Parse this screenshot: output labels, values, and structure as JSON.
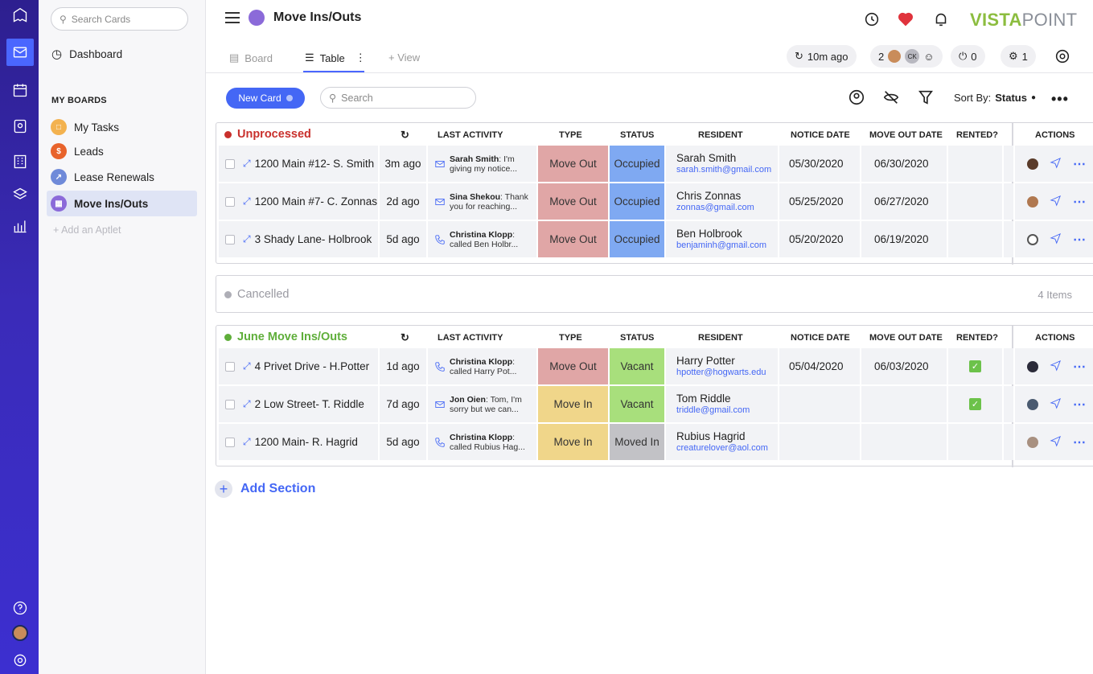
{
  "app": {
    "brand_bold": "VISTA",
    "brand_light": "POINT"
  },
  "sidebar": {
    "search_placeholder": "Search Cards",
    "dashboard": "Dashboard",
    "my_boards": "MY BOARDS",
    "items": [
      {
        "label": "My Tasks",
        "color": "#f3b24f"
      },
      {
        "label": "Leads",
        "color": "#e8632b"
      },
      {
        "label": "Lease Renewals",
        "color": "#6f8ad9"
      },
      {
        "label": "Move Ins/Outs",
        "color": "#8b6ad9"
      }
    ],
    "add_aptlet": "+ Add an Aptlet"
  },
  "header": {
    "title": "Move Ins/Outs",
    "tabs": {
      "board": "Board",
      "table": "Table",
      "view": "+ View"
    },
    "last_sync": "10m ago",
    "watchers_count": "2",
    "watcher_initials": "CK",
    "integrations_count": "0",
    "bots_count": "1"
  },
  "toolbar": {
    "new_card": "New Card",
    "search_placeholder": "Search",
    "sort_by": "Sort By:",
    "sort_value": "Status"
  },
  "columns": {
    "last_activity": "LAST ACTIVITY",
    "type": "TYPE",
    "status": "STATUS",
    "resident": "RESIDENT",
    "notice_date": "NOTICE DATE",
    "move_out_date": "MOVE OUT DATE",
    "rented": "RENTED?",
    "actions": "ACTIONS"
  },
  "colors": {
    "move_out": "#e0a6a6",
    "move_in": "#f0d68a",
    "occupied": "#7fa9f2",
    "vacant": "#a8df7c",
    "moved_in": "#c2c2c6",
    "unprocessed": "#c9302c",
    "june": "#5fae3a"
  },
  "sections": [
    {
      "title": "Unprocessed",
      "rows": [
        {
          "name": "1200 Main #12- S. Smith",
          "ago": "3m ago",
          "act_icon": "mail-icon",
          "act_who": "Sarah Smith",
          "act_text1": ": I'm",
          "act_text2": "giving my notice...",
          "type": "Move Out",
          "status": "Occupied",
          "res_name": "Sarah Smith",
          "res_email": "sarah.smith@gmail.com",
          "notice": "05/30/2020",
          "moveout": "06/30/2020",
          "rented": false
        },
        {
          "name": "1200 Main #7- C. Zonnas",
          "ago": "2d ago",
          "act_icon": "mail-icon",
          "act_who": "Sina Shekou",
          "act_text1": ": Thank",
          "act_text2": "you for reaching...",
          "type": "Move Out",
          "status": "Occupied",
          "res_name": "Chris Zonnas",
          "res_email": "zonnas@gmail.com",
          "notice": "05/25/2020",
          "moveout": "06/27/2020",
          "rented": false
        },
        {
          "name": "3 Shady Lane- Holbrook",
          "ago": "5d ago",
          "act_icon": "phone-icon",
          "act_who": "Christina Klopp",
          "act_text1": ":",
          "act_text2": "called Ben Holbr...",
          "type": "Move Out",
          "status": "Occupied",
          "res_name": "Ben Holbrook",
          "res_email": "benjaminh@gmail.com",
          "notice": "05/20/2020",
          "moveout": "06/19/2020",
          "rented": false
        }
      ]
    },
    {
      "title": "June Move Ins/Outs",
      "rows": [
        {
          "name": "4 Privet Drive - H.Potter",
          "ago": "1d ago",
          "act_icon": "phone-icon",
          "act_who": "Christina Klopp",
          "act_text1": ":",
          "act_text2": "called Harry Pot...",
          "type": "Move Out",
          "status": "Vacant",
          "res_name": "Harry Potter",
          "res_email": "hpotter@hogwarts.edu",
          "notice": "05/04/2020",
          "moveout": "06/03/2020",
          "rented": true
        },
        {
          "name": "2 Low Street- T. Riddle",
          "ago": "7d ago",
          "act_icon": "mail-icon",
          "act_who": "Jon Oien",
          "act_text1": ": Tom, I'm",
          "act_text2": "sorry but we can...",
          "type": "Move In",
          "status": "Vacant",
          "res_name": "Tom Riddle",
          "res_email": "triddle@gmail.com",
          "notice": "",
          "moveout": "",
          "rented": true
        },
        {
          "name": "1200 Main- R. Hagrid",
          "ago": "5d ago",
          "act_icon": "phone-icon",
          "act_who": "Christina Klopp",
          "act_text1": ":",
          "act_text2": "called Rubius Hag...",
          "type": "Move In",
          "status": "Moved In",
          "res_name": "Rubius Hagrid",
          "res_email": "creaturelover@aol.com",
          "notice": "",
          "moveout": "",
          "rented": false
        }
      ]
    }
  ],
  "cancelled": {
    "title": "Cancelled",
    "count": "4 Items"
  },
  "add_section": "Add Section"
}
